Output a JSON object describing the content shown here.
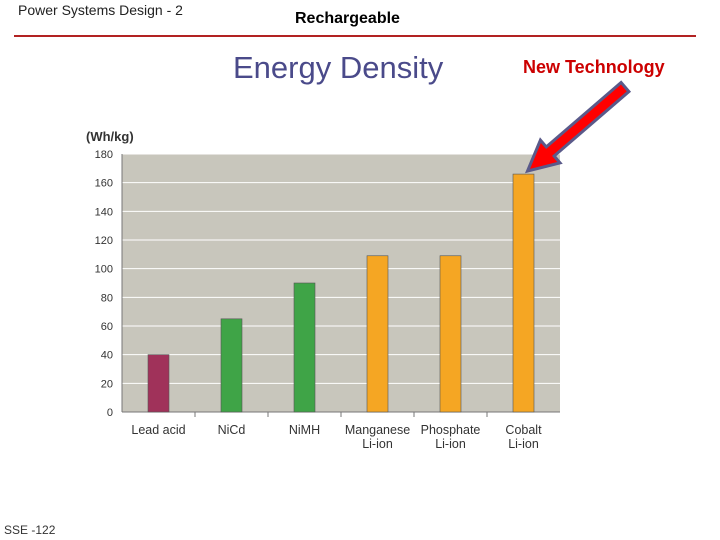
{
  "header": {
    "course": "Power Systems Design - 2",
    "topic": "Rechargeable"
  },
  "title": "Energy Density",
  "callout": {
    "label": "New Technology",
    "arrow_color": "#ff0000"
  },
  "footer": {
    "slide_code": "SSE -122"
  },
  "colors": {
    "rule": "#b22222",
    "title": "#4a4a8a",
    "plot_background": "#c8c6bc"
  },
  "chart_data": {
    "type": "bar",
    "ylabel": "(Wh/kg)",
    "ylim": [
      0,
      180
    ],
    "yticks": [
      0,
      20,
      40,
      60,
      80,
      100,
      120,
      140,
      160,
      180
    ],
    "grid": true,
    "categories": [
      [
        "Lead acid"
      ],
      [
        "NiCd"
      ],
      [
        "NiMH"
      ],
      [
        "Manganese",
        "Li-ion"
      ],
      [
        "Phosphate",
        "Li-ion"
      ],
      [
        "Cobalt",
        "Li-ion"
      ]
    ],
    "values": [
      40,
      65,
      90,
      109,
      109,
      166
    ],
    "bar_colors": [
      "#a0325a",
      "#3fa447",
      "#3fa447",
      "#f5a623",
      "#f5a623",
      "#f5a623"
    ]
  }
}
